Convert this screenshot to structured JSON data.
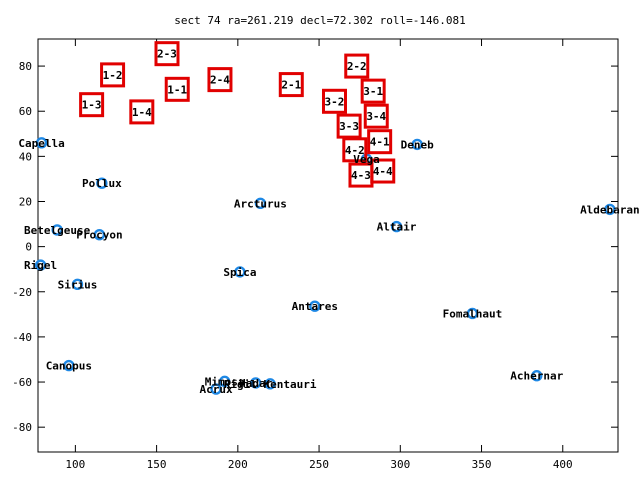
{
  "chart_data": {
    "type": "scatter",
    "title": "sect 74 ra=261.219 decl=72.302 roll=-146.081",
    "xlabel": "",
    "ylabel": "",
    "xlim": [
      77,
      434
    ],
    "ylim": [
      -91,
      92
    ],
    "xticks": [
      100,
      150,
      200,
      250,
      300,
      350,
      400
    ],
    "yticks": [
      -80,
      -60,
      -40,
      -20,
      0,
      20,
      40,
      60,
      80
    ],
    "grid": false,
    "legend": "none",
    "star_color": "#1e88e5",
    "box_color": "#e10000",
    "stars": [
      {
        "name": "Capella",
        "x": 79.2,
        "y": 46.0
      },
      {
        "name": "Pollux",
        "x": 116.3,
        "y": 28.1
      },
      {
        "name": "Betelgeuse",
        "x": 88.8,
        "y": 7.4
      },
      {
        "name": "Procyon",
        "x": 114.8,
        "y": 5.3
      },
      {
        "name": "Rigel",
        "x": 78.6,
        "y": -8.2
      },
      {
        "name": "Sirius",
        "x": 101.3,
        "y": -16.7
      },
      {
        "name": "Canopus",
        "x": 96.0,
        "y": -52.7
      },
      {
        "name": "Arcturus",
        "x": 213.9,
        "y": 19.2
      },
      {
        "name": "Spica",
        "x": 201.3,
        "y": -11.2
      },
      {
        "name": "Antares",
        "x": 247.4,
        "y": -26.4
      },
      {
        "name": "Mimosa",
        "x": 191.9,
        "y": -59.7
      },
      {
        "name": "Acrux",
        "x": 186.6,
        "y": -63.1
      },
      {
        "name": "Hadar",
        "x": 211.0,
        "y": -60.4
      },
      {
        "name": "Rigil Kentaurus",
        "x": 219.9,
        "y": -60.8
      },
      {
        "name": "Vega",
        "x": 279.2,
        "y": 38.8
      },
      {
        "name": "Deneb",
        "x": 310.4,
        "y": 45.3
      },
      {
        "name": "Altair",
        "x": 297.7,
        "y": 8.9
      },
      {
        "name": "Aldebaran",
        "x": 429.0,
        "y": 16.5
      },
      {
        "name": "Fomalhaut",
        "x": 344.4,
        "y": -29.6
      },
      {
        "name": "Achernar",
        "x": 384.0,
        "y": -57.2
      }
    ],
    "star_labels": [
      {
        "text": "Capella",
        "star": 0
      },
      {
        "text": "Pollux",
        "star": 1
      },
      {
        "text": "Betelgeuse",
        "star": 2
      },
      {
        "text": "Procyon",
        "star": 3
      },
      {
        "text": "Rigel",
        "star": 4
      },
      {
        "text": "Sirius",
        "star": 5
      },
      {
        "text": "Canopus",
        "star": 6
      },
      {
        "text": "Arcturus",
        "star": 7
      },
      {
        "text": "Spica",
        "star": 8
      },
      {
        "text": "Antares",
        "star": 9
      },
      {
        "text": "Mimosa",
        "star": 10
      },
      {
        "text": "Acrux",
        "star": 11
      },
      {
        "text": "Hadar",
        "star": 12
      },
      {
        "text": "Rigil Kentauri",
        "star": 13
      },
      {
        "text": "Vega",
        "star": 14
      },
      {
        "text": "Deneb",
        "star": 15
      },
      {
        "text": "Altair",
        "star": 16
      },
      {
        "text": "Aldebaran",
        "star": 17
      },
      {
        "text": "Fomalhaut",
        "star": 18
      },
      {
        "text": "Achernar",
        "star": 19
      }
    ],
    "sectors": [
      {
        "label": "2-3",
        "x": 156.4,
        "y": 85.5
      },
      {
        "label": "1-2",
        "x": 122.9,
        "y": 76.1
      },
      {
        "label": "1-1",
        "x": 162.7,
        "y": 69.7
      },
      {
        "label": "1-3",
        "x": 110.0,
        "y": 62.9
      },
      {
        "label": "1-4",
        "x": 140.9,
        "y": 59.7
      },
      {
        "label": "2-4",
        "x": 189.0,
        "y": 74.0
      },
      {
        "label": "2-1",
        "x": 232.9,
        "y": 71.8
      },
      {
        "label": "2-2",
        "x": 273.2,
        "y": 80.0
      },
      {
        "label": "3-1",
        "x": 283.3,
        "y": 68.9
      },
      {
        "label": "3-2",
        "x": 259.5,
        "y": 64.4
      },
      {
        "label": "3-4",
        "x": 285.2,
        "y": 57.8
      },
      {
        "label": "3-3",
        "x": 268.5,
        "y": 53.4
      },
      {
        "label": "4-1",
        "x": 287.3,
        "y": 46.5
      },
      {
        "label": "4-2",
        "x": 272.0,
        "y": 42.9
      },
      {
        "label": "4-4",
        "x": 289.2,
        "y": 33.5
      },
      {
        "label": "4-3",
        "x": 275.8,
        "y": 31.7
      }
    ]
  }
}
